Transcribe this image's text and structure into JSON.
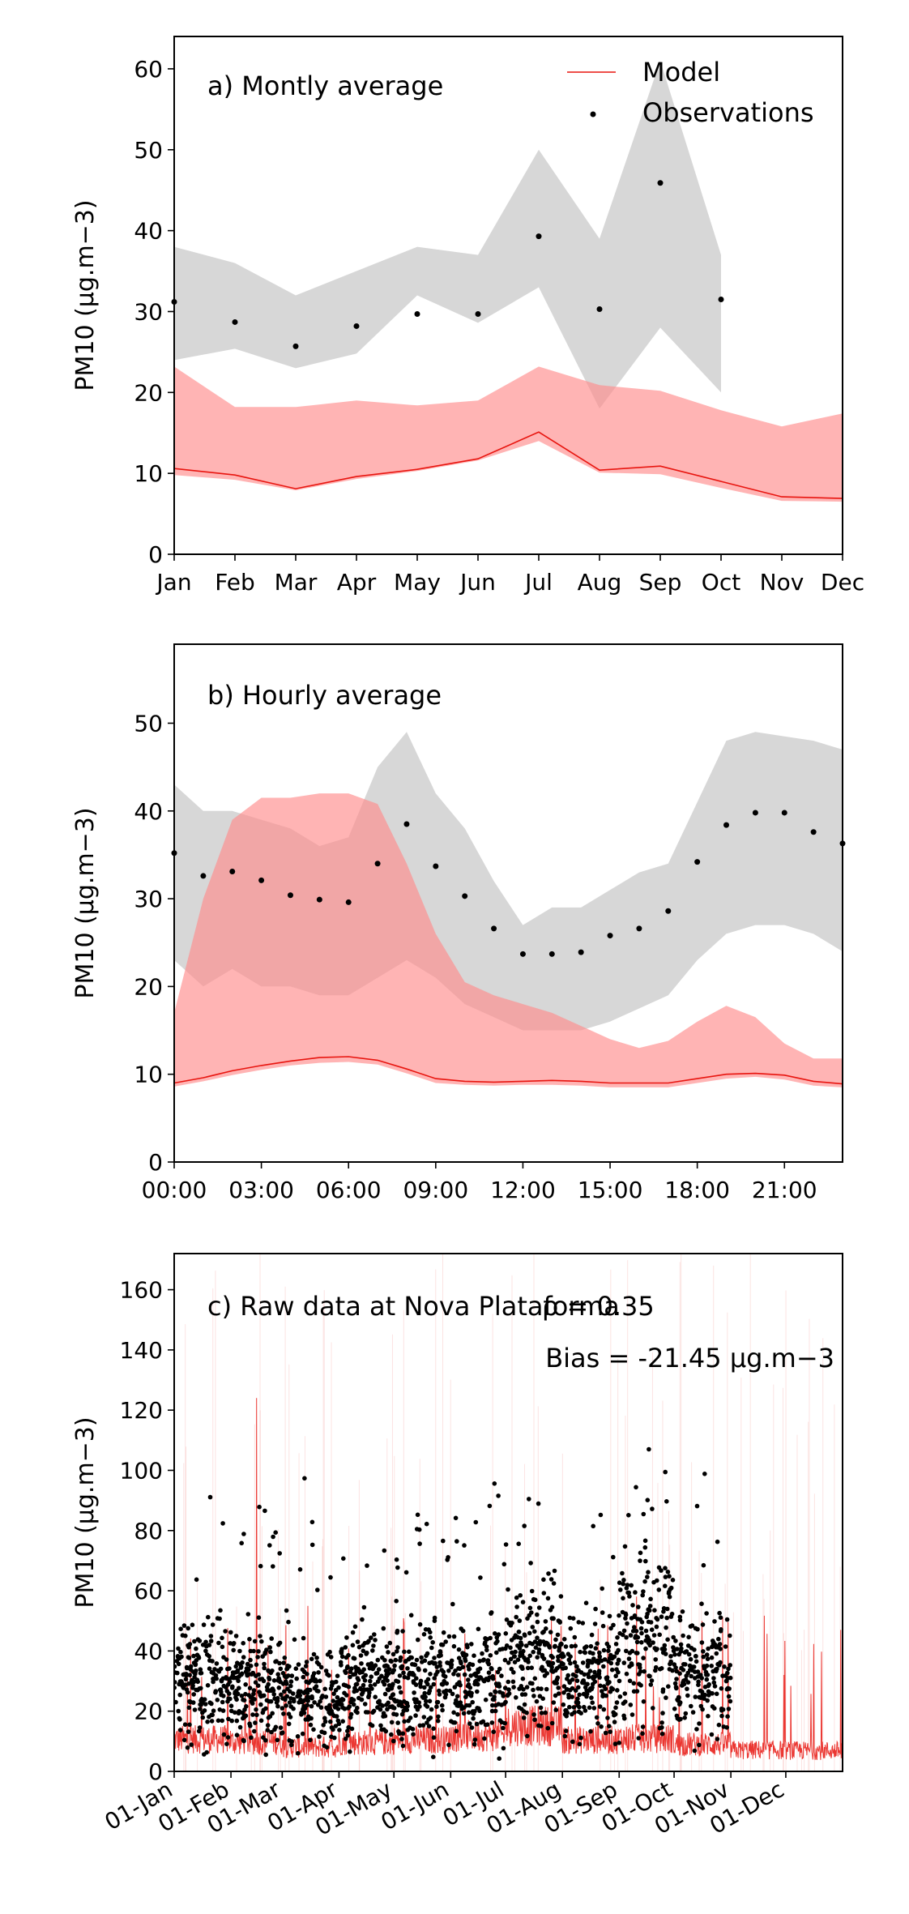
{
  "chart_data": [
    {
      "type": "line",
      "title": "a) Montly average",
      "xlabel": "",
      "ylabel": "PM10 (μg.m−3)",
      "categories": [
        "Jan",
        "Feb",
        "Mar",
        "Apr",
        "May",
        "Jun",
        "Jul",
        "Aug",
        "Sep",
        "Oct",
        "Nov",
        "Dec"
      ],
      "ylim": [
        0,
        64
      ],
      "yticks": [
        0,
        10,
        20,
        30,
        40,
        50,
        60
      ],
      "series": [
        {
          "name": "Model",
          "kind": "line",
          "color": "#e8150f",
          "values": [
            10.6,
            9.8,
            8.1,
            9.6,
            10.5,
            11.8,
            15.1,
            10.4,
            10.9,
            9.0,
            7.1,
            6.9
          ],
          "band_low": [
            9.8,
            9.2,
            7.9,
            9.3,
            10.3,
            11.6,
            14.0,
            10.1,
            9.9,
            8.2,
            6.6,
            6.5
          ],
          "band_high": [
            23.2,
            18.2,
            18.2,
            19.0,
            18.4,
            19.0,
            23.2,
            20.9,
            20.2,
            17.8,
            15.8,
            17.4
          ],
          "band_color": "#ff8c8c"
        },
        {
          "name": "Observations",
          "kind": "points",
          "color": "#000000",
          "values": [
            31.2,
            28.7,
            25.7,
            28.2,
            29.7,
            29.7,
            39.3,
            30.3,
            45.9,
            31.5,
            null,
            null
          ],
          "band_low": [
            24.0,
            25.4,
            23.0,
            24.8,
            32.0,
            28.6,
            33.0,
            18.0,
            28.0,
            20.0,
            null,
            null
          ],
          "band_high": [
            38.0,
            36.0,
            32.0,
            35.0,
            38.0,
            37.0,
            50.0,
            39.0,
            61.0,
            37.0,
            null,
            null
          ],
          "band_color": "#bdbdbd"
        }
      ],
      "legend": "top-right"
    },
    {
      "type": "line",
      "title": "b) Hourly average",
      "xlabel": "",
      "ylabel": "PM10 (μg.m−3)",
      "x": [
        0,
        1,
        2,
        3,
        4,
        5,
        6,
        7,
        8,
        9,
        10,
        11,
        12,
        13,
        14,
        15,
        16,
        17,
        18,
        19,
        20,
        21,
        22,
        23
      ],
      "xtick_values": [
        0,
        3,
        6,
        9,
        12,
        15,
        18,
        21
      ],
      "xtick_labels": [
        "00:00",
        "03:00",
        "06:00",
        "09:00",
        "12:00",
        "15:00",
        "18:00",
        "21:00"
      ],
      "ylim": [
        0,
        59
      ],
      "yticks": [
        0,
        10,
        20,
        30,
        40,
        50
      ],
      "series": [
        {
          "name": "Model",
          "kind": "line",
          "color": "#e8150f",
          "values": [
            9.0,
            9.6,
            10.4,
            11.0,
            11.5,
            11.9,
            12.0,
            11.6,
            10.6,
            9.5,
            9.2,
            9.1,
            9.2,
            9.3,
            9.2,
            9.0,
            9.0,
            9.0,
            9.5,
            10.0,
            10.1,
            9.9,
            9.2,
            8.9
          ],
          "band_low": [
            8.6,
            9.2,
            9.9,
            10.5,
            11.0,
            11.3,
            11.4,
            11.1,
            10.1,
            9.0,
            8.8,
            8.7,
            8.8,
            8.8,
            8.7,
            8.5,
            8.5,
            8.5,
            9.0,
            9.5,
            9.7,
            9.4,
            8.7,
            8.5
          ],
          "band_high": [
            17.0,
            30.0,
            39.0,
            41.5,
            41.5,
            42.0,
            42.0,
            40.8,
            34.0,
            26.0,
            20.5,
            19.0,
            18.0,
            17.0,
            15.5,
            14.0,
            13.0,
            13.8,
            16.0,
            17.8,
            16.5,
            13.5,
            11.8,
            11.8
          ],
          "band_color": "#ff8c8c"
        },
        {
          "name": "Observations",
          "kind": "points",
          "color": "#000000",
          "values": [
            35.2,
            32.6,
            33.1,
            32.1,
            30.4,
            29.9,
            29.6,
            34.0,
            38.5,
            33.7,
            30.3,
            26.6,
            23.7,
            23.7,
            23.9,
            25.8,
            26.6,
            28.6,
            34.2,
            38.4,
            39.8,
            39.8,
            37.6,
            36.3
          ],
          "band_low": [
            23.0,
            20.0,
            22.0,
            20.0,
            20.0,
            19.0,
            19.0,
            21.0,
            23.0,
            21.0,
            18.0,
            16.5,
            15.0,
            15.0,
            15.0,
            16.0,
            17.5,
            19.0,
            23.0,
            26.0,
            27.0,
            27.0,
            26.0,
            24.0
          ],
          "band_high": [
            43.0,
            40.0,
            40.0,
            39.0,
            38.0,
            36.0,
            37.0,
            45.0,
            49.0,
            42.0,
            38.0,
            32.0,
            27.0,
            29.0,
            29.0,
            31.0,
            33.0,
            34.0,
            41.0,
            48.0,
            49.0,
            48.5,
            48.0,
            47.0
          ],
          "band_color": "#bdbdbd"
        }
      ]
    },
    {
      "type": "scatter",
      "title": "c) Raw data at Nova Plataforma",
      "annotations": [
        "ρ = 0.35",
        "Bias = -21.45 μg.m−3"
      ],
      "xlabel": "",
      "ylabel": "PM10 (μg.m−3)",
      "ylim": [
        0,
        172
      ],
      "yticks": [
        0,
        20,
        40,
        60,
        80,
        100,
        120,
        140,
        160
      ],
      "xlim_days": [
        0,
        365
      ],
      "xtick_labels": [
        "01-Jan",
        "01-Feb",
        "01-Mar",
        "01-Apr",
        "01-May",
        "01-Jun",
        "01-Jul",
        "01-Aug",
        "01-Sep",
        "01-Oct",
        "01-Nov",
        "01-Dec"
      ],
      "xtick_days": [
        0,
        31,
        59,
        90,
        120,
        151,
        181,
        212,
        243,
        273,
        304,
        334
      ],
      "observation_period": "01-Jan to 01-Nov",
      "series": [
        {
          "name": "Model",
          "kind": "line",
          "color": "#e8150f",
          "note": "hourly model time series, peaks up to about 124 at mid-Feb",
          "monthly_mean": [
            10.6,
            9.8,
            8.1,
            9.6,
            10.5,
            11.8,
            15.1,
            10.4,
            10.9,
            9.0,
            7.1,
            6.9
          ]
        },
        {
          "name": "Observations",
          "kind": "points",
          "color": "#000000",
          "note": "hourly observations, mostly between 10 and 60, maxima near 107",
          "monthly_mean": [
            31.2,
            28.7,
            25.7,
            28.2,
            29.7,
            29.7,
            39.3,
            30.3,
            45.9,
            31.5,
            null,
            null
          ]
        }
      ]
    }
  ]
}
